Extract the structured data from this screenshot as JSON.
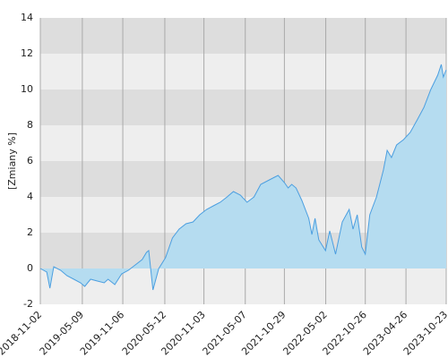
{
  "chart_data": {
    "type": "area",
    "y_label": "[Zmiany %]",
    "x": [
      "2018-11-02",
      "2018-12-01",
      "2018-12-15",
      "2019-01-01",
      "2019-02-01",
      "2019-03-01",
      "2019-04-01",
      "2019-05-01",
      "2019-05-20",
      "2019-06-15",
      "2019-07-15",
      "2019-08-15",
      "2019-09-01",
      "2019-10-01",
      "2019-11-01",
      "2019-12-01",
      "2020-01-01",
      "2020-02-01",
      "2020-02-20",
      "2020-03-01",
      "2020-03-20",
      "2020-04-15",
      "2020-05-15",
      "2020-06-15",
      "2020-07-15",
      "2020-08-15",
      "2020-09-15",
      "2020-10-15",
      "2020-11-15",
      "2020-12-15",
      "2021-01-15",
      "2021-02-15",
      "2021-03-15",
      "2021-04-15",
      "2021-05-15",
      "2021-06-15",
      "2021-07-15",
      "2021-08-15",
      "2021-09-15",
      "2021-10-01",
      "2021-10-29",
      "2021-11-15",
      "2021-12-01",
      "2021-12-20",
      "2022-01-15",
      "2022-02-15",
      "2022-03-01",
      "2022-03-15",
      "2022-04-01",
      "2022-05-01",
      "2022-05-20",
      "2022-06-15",
      "2022-07-15",
      "2022-08-15",
      "2022-09-01",
      "2022-09-20",
      "2022-10-10",
      "2022-10-26",
      "2022-11-15",
      "2022-12-15",
      "2023-01-15",
      "2023-02-01",
      "2023-02-20",
      "2023-03-15",
      "2023-04-15",
      "2023-05-15",
      "2023-06-15",
      "2023-07-15",
      "2023-08-15",
      "2023-09-15",
      "2023-10-01",
      "2023-10-10",
      "2023-10-23"
    ],
    "values": [
      0,
      -0.2,
      -1.1,
      0.1,
      -0.1,
      -0.4,
      -0.6,
      -0.8,
      -1.0,
      -0.6,
      -0.7,
      -0.8,
      -0.6,
      -0.9,
      -0.3,
      -0.1,
      0.2,
      0.5,
      0.9,
      1.0,
      -1.2,
      0.0,
      0.6,
      1.7,
      2.2,
      2.5,
      2.6,
      3.0,
      3.3,
      3.5,
      3.7,
      4.0,
      4.3,
      4.1,
      3.7,
      4.0,
      4.7,
      4.9,
      5.1,
      5.2,
      4.8,
      4.5,
      4.7,
      4.5,
      3.8,
      2.8,
      1.9,
      2.8,
      1.6,
      1.0,
      2.1,
      0.8,
      2.6,
      3.3,
      2.2,
      3.0,
      1.2,
      0.8,
      3.0,
      4.0,
      5.5,
      6.6,
      6.2,
      6.9,
      7.2,
      7.6,
      8.3,
      9.0,
      10.0,
      10.8,
      11.4,
      10.7,
      11.1
    ],
    "color": "#4c9fe0",
    "fill_color": "#b5dcf0",
    "xlim": [
      "2018-11-02",
      "2023-10-23"
    ],
    "xticks": [
      "2018-11-02",
      "2019-05-09",
      "2019-11-06",
      "2020-05-12",
      "2020-11-03",
      "2021-05-07",
      "2021-10-29",
      "2022-05-02",
      "2022-10-26",
      "2023-04-26",
      "2023-10-23"
    ],
    "ylim": [
      -2,
      14
    ],
    "yticks": [
      -2,
      0,
      2,
      4,
      6,
      8,
      10,
      12,
      14
    ],
    "grid": true
  }
}
